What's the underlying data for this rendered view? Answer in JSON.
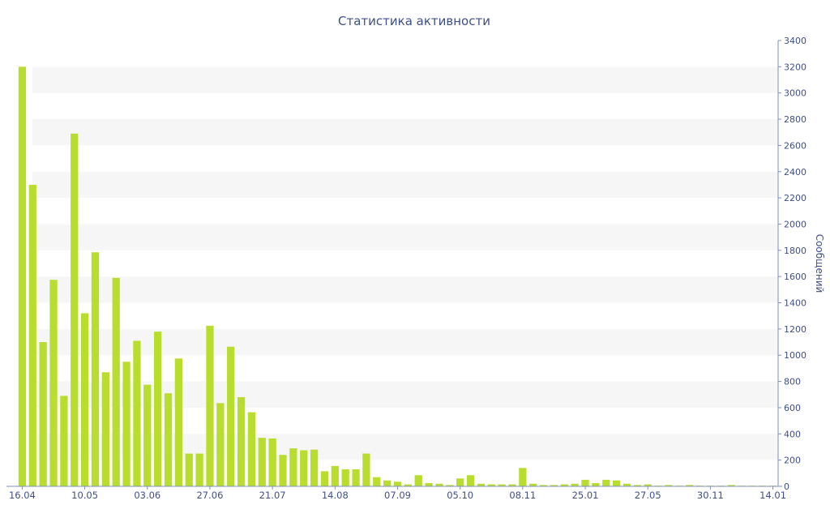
{
  "chart_data": {
    "type": "bar",
    "title": "Статистика активности",
    "xlabel": "",
    "ylabel": "Сообщений",
    "y_axis_position": "right",
    "ylim": [
      0,
      3400
    ],
    "yticks": [
      0,
      200,
      400,
      600,
      800,
      1000,
      1200,
      1400,
      1600,
      1800,
      2000,
      2200,
      2400,
      2600,
      2800,
      3000,
      3200,
      3400
    ],
    "grid": "alternating horizontal bands",
    "bar_color": "#b9dd2f",
    "xtick_labels": [
      {
        "index": 0,
        "label": "16.04"
      },
      {
        "index": 6,
        "label": "10.05"
      },
      {
        "index": 12,
        "label": "03.06"
      },
      {
        "index": 18,
        "label": "27.06"
      },
      {
        "index": 24,
        "label": "21.07"
      },
      {
        "index": 30,
        "label": "14.08"
      },
      {
        "index": 36,
        "label": "07.09"
      },
      {
        "index": 42,
        "label": "05.10"
      },
      {
        "index": 48,
        "label": "08.11"
      },
      {
        "index": 54,
        "label": "25.01"
      },
      {
        "index": 60,
        "label": "27.05"
      },
      {
        "index": 66,
        "label": "30.11"
      },
      {
        "index": 72,
        "label": "14.01"
      }
    ],
    "values": [
      3200,
      2300,
      1100,
      1575,
      690,
      2690,
      1320,
      1785,
      870,
      1590,
      950,
      1110,
      775,
      1180,
      710,
      975,
      250,
      250,
      1225,
      635,
      1065,
      680,
      565,
      370,
      365,
      240,
      290,
      275,
      280,
      115,
      155,
      130,
      130,
      250,
      70,
      45,
      35,
      15,
      85,
      25,
      20,
      10,
      60,
      85,
      20,
      15,
      15,
      15,
      140,
      20,
      10,
      10,
      15,
      20,
      50,
      25,
      50,
      45,
      20,
      10,
      15,
      5,
      10,
      5,
      10,
      5,
      5,
      5,
      10,
      5,
      5,
      5,
      5
    ]
  }
}
